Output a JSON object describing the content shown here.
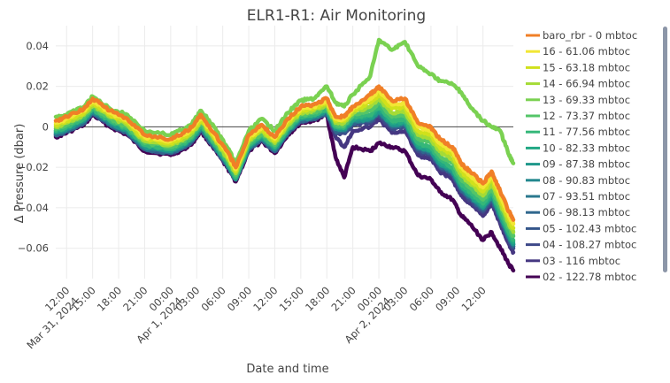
{
  "chart_data": {
    "type": "line",
    "title": "ELR1-R1: Air Monitoring",
    "xlabel": "Date and time",
    "ylabel": "Δ Pressure (dbar)",
    "ylim": [
      -0.075,
      0.05
    ],
    "xlim": [
      "2024-03-31T10:45",
      "2024-04-02T15:30"
    ],
    "y_ticks": [
      -0.06,
      -0.04,
      -0.02,
      0,
      0.02,
      0.04
    ],
    "y_tick_labels": [
      "−0.06",
      "−0.04",
      "−0.02",
      "0",
      "0.02",
      "0.04"
    ],
    "x_ticks": [
      {
        "t": "2024-03-31T12:00",
        "label": "12:00",
        "sub": "Mar 31, 2024"
      },
      {
        "t": "2024-03-31T15:00",
        "label": "15:00"
      },
      {
        "t": "2024-03-31T18:00",
        "label": "18:00"
      },
      {
        "t": "2024-03-31T21:00",
        "label": "21:00"
      },
      {
        "t": "2024-04-01T00:00",
        "label": "00:00",
        "sub": "Apr 1, 2024"
      },
      {
        "t": "2024-04-01T03:00",
        "label": "03:00"
      },
      {
        "t": "2024-04-01T06:00",
        "label": "06:00"
      },
      {
        "t": "2024-04-01T09:00",
        "label": "09:00"
      },
      {
        "t": "2024-04-01T12:00",
        "label": "12:00"
      },
      {
        "t": "2024-04-01T15:00",
        "label": "15:00"
      },
      {
        "t": "2024-04-01T18:00",
        "label": "18:00"
      },
      {
        "t": "2024-04-01T21:00",
        "label": "21:00"
      },
      {
        "t": "2024-04-02T00:00",
        "label": "00:00",
        "sub": "Apr 2, 2024"
      },
      {
        "t": "2024-04-02T03:00",
        "label": "03:00"
      },
      {
        "t": "2024-04-02T06:00",
        "label": "06:00"
      },
      {
        "t": "2024-04-02T09:00",
        "label": "09:00"
      },
      {
        "t": "2024-04-02T12:00",
        "label": "12:00"
      }
    ],
    "grid": true,
    "legend_position": "right",
    "x": [
      "2024-03-31T10:45",
      "2024-03-31T12:00",
      "2024-03-31T14:00",
      "2024-03-31T15:00",
      "2024-03-31T17:00",
      "2024-03-31T19:00",
      "2024-03-31T21:00",
      "2024-04-01T00:00",
      "2024-04-01T01:30",
      "2024-04-01T02:30",
      "2024-04-01T03:30",
      "2024-04-01T05:00",
      "2024-04-01T06:30",
      "2024-04-01T07:30",
      "2024-04-01T09:00",
      "2024-04-01T10:30",
      "2024-04-01T12:00",
      "2024-04-01T13:30",
      "2024-04-01T15:00",
      "2024-04-01T16:30",
      "2024-04-01T18:00",
      "2024-04-01T19:00",
      "2024-04-01T20:00",
      "2024-04-01T21:00",
      "2024-04-01T23:00",
      "2024-04-02T00:00",
      "2024-04-02T01:30",
      "2024-04-02T03:00",
      "2024-04-02T04:30",
      "2024-04-02T06:00",
      "2024-04-02T07:00",
      "2024-04-02T08:30",
      "2024-04-02T09:30",
      "2024-04-02T10:30",
      "2024-04-02T12:00",
      "2024-04-02T13:00",
      "2024-04-02T14:00",
      "2024-04-02T15:00",
      "2024-04-02T15:30"
    ],
    "series": [
      {
        "name": "baro_rbr - 0 mbtoc",
        "color": "#f07f27",
        "values": [
          0.003,
          0.005,
          0.009,
          0.014,
          0.008,
          0.004,
          -0.004,
          -0.006,
          -0.003,
          0.0,
          0.006,
          -0.003,
          -0.012,
          -0.02,
          -0.004,
          0.001,
          -0.005,
          0.004,
          0.01,
          0.011,
          0.014,
          0.005,
          0.005,
          0.01,
          0.016,
          0.02,
          0.013,
          0.014,
          0.002,
          0.0,
          -0.006,
          -0.01,
          -0.018,
          -0.022,
          -0.028,
          -0.022,
          -0.032,
          -0.042,
          -0.046
        ]
      },
      {
        "name": "16 - 61.06 mbtoc",
        "color": "#f2e635",
        "values": [
          0.002,
          0.004,
          0.008,
          0.013,
          0.007,
          0.003,
          -0.005,
          -0.007,
          -0.004,
          -0.001,
          0.005,
          -0.004,
          -0.013,
          -0.021,
          -0.005,
          0.0,
          -0.006,
          0.003,
          0.009,
          0.01,
          0.013,
          0.004,
          0.004,
          0.009,
          0.014,
          0.018,
          0.011,
          0.012,
          0.0,
          -0.002,
          -0.008,
          -0.012,
          -0.02,
          -0.024,
          -0.03,
          -0.024,
          -0.034,
          -0.044,
          -0.048
        ]
      },
      {
        "name": "15 - 63.18 mbtoc",
        "color": "#d0e11c",
        "values": [
          0.001,
          0.003,
          0.007,
          0.012,
          0.006,
          0.002,
          -0.006,
          -0.008,
          -0.005,
          -0.002,
          0.004,
          -0.005,
          -0.014,
          -0.022,
          -0.006,
          -0.001,
          -0.007,
          0.002,
          0.008,
          0.009,
          0.012,
          0.003,
          0.003,
          0.008,
          0.012,
          0.016,
          0.009,
          0.01,
          -0.002,
          -0.004,
          -0.01,
          -0.014,
          -0.022,
          -0.026,
          -0.032,
          -0.026,
          -0.036,
          -0.046,
          -0.05
        ]
      },
      {
        "name": "14 - 66.94 mbtoc",
        "color": "#a5db36",
        "values": [
          0.0,
          0.002,
          0.006,
          0.011,
          0.005,
          0.001,
          -0.007,
          -0.009,
          -0.006,
          -0.003,
          0.003,
          -0.006,
          -0.015,
          -0.023,
          -0.007,
          -0.002,
          -0.008,
          0.001,
          0.007,
          0.008,
          0.011,
          0.002,
          0.002,
          0.007,
          0.01,
          0.014,
          0.007,
          0.008,
          -0.004,
          -0.006,
          -0.012,
          -0.016,
          -0.024,
          -0.028,
          -0.034,
          -0.028,
          -0.038,
          -0.048,
          -0.052
        ]
      },
      {
        "name": "13 - 69.33 mbtoc",
        "color": "#7ad151",
        "values": [
          0.005,
          0.006,
          0.01,
          0.015,
          0.009,
          0.006,
          -0.002,
          -0.004,
          -0.001,
          0.002,
          0.008,
          0.0,
          -0.01,
          -0.018,
          -0.002,
          0.004,
          -0.002,
          0.007,
          0.013,
          0.014,
          0.02,
          0.012,
          0.01,
          0.016,
          0.025,
          0.043,
          0.038,
          0.042,
          0.03,
          0.026,
          0.023,
          0.021,
          0.017,
          0.01,
          0.003,
          0.0,
          -0.002,
          -0.014,
          -0.018
        ]
      },
      {
        "name": "12 - 73.37 mbtoc",
        "color": "#54c568",
        "values": [
          -0.001,
          0.001,
          0.005,
          0.01,
          0.004,
          0.0,
          -0.008,
          -0.01,
          -0.007,
          -0.004,
          0.002,
          -0.007,
          -0.016,
          -0.024,
          -0.008,
          -0.003,
          -0.009,
          0.0,
          0.006,
          0.007,
          0.01,
          0.001,
          0.001,
          0.006,
          0.008,
          0.012,
          0.005,
          0.006,
          -0.006,
          -0.008,
          -0.014,
          -0.018,
          -0.026,
          -0.03,
          -0.036,
          -0.03,
          -0.04,
          -0.05,
          -0.054
        ]
      },
      {
        "name": "11 - 77.56 mbtoc",
        "color": "#35b779",
        "values": [
          -0.002,
          0.0,
          0.004,
          0.009,
          0.003,
          -0.001,
          -0.009,
          -0.011,
          -0.008,
          -0.005,
          0.001,
          -0.008,
          -0.017,
          -0.025,
          -0.009,
          -0.004,
          -0.01,
          -0.001,
          0.005,
          0.006,
          0.009,
          0.0,
          0.0,
          0.005,
          0.006,
          0.01,
          0.003,
          0.004,
          -0.008,
          -0.01,
          -0.016,
          -0.02,
          -0.028,
          -0.032,
          -0.038,
          -0.032,
          -0.042,
          -0.052,
          -0.056
        ]
      },
      {
        "name": "10 - 82.33 mbtoc",
        "color": "#22a884",
        "values": [
          -0.002,
          0.0,
          0.004,
          0.009,
          0.003,
          -0.001,
          -0.009,
          -0.011,
          -0.008,
          -0.005,
          0.001,
          -0.008,
          -0.017,
          -0.025,
          -0.009,
          -0.004,
          -0.01,
          -0.001,
          0.005,
          0.006,
          0.009,
          0.0,
          0.0,
          0.004,
          0.005,
          0.009,
          0.002,
          0.003,
          -0.009,
          -0.011,
          -0.017,
          -0.021,
          -0.029,
          -0.033,
          -0.039,
          -0.033,
          -0.043,
          -0.053,
          -0.057
        ]
      },
      {
        "name": "09 - 87.38 mbtoc",
        "color": "#1f988b",
        "values": [
          -0.003,
          -0.001,
          0.003,
          0.008,
          0.002,
          -0.002,
          -0.01,
          -0.012,
          -0.009,
          -0.006,
          0.0,
          -0.009,
          -0.018,
          -0.026,
          -0.01,
          -0.005,
          -0.011,
          -0.002,
          0.004,
          0.005,
          0.008,
          -0.001,
          -0.001,
          0.003,
          0.004,
          0.008,
          0.001,
          0.002,
          -0.01,
          -0.012,
          -0.018,
          -0.022,
          -0.03,
          -0.034,
          -0.04,
          -0.034,
          -0.044,
          -0.054,
          -0.058
        ]
      },
      {
        "name": "08 - 90.83 mbtoc",
        "color": "#23888e",
        "values": [
          -0.003,
          -0.001,
          0.003,
          0.008,
          0.002,
          -0.002,
          -0.01,
          -0.012,
          -0.009,
          -0.006,
          0.0,
          -0.009,
          -0.018,
          -0.026,
          -0.01,
          -0.005,
          -0.011,
          -0.002,
          0.004,
          0.005,
          0.008,
          -0.001,
          -0.001,
          0.003,
          0.004,
          0.008,
          0.001,
          0.002,
          -0.01,
          -0.012,
          -0.018,
          -0.022,
          -0.03,
          -0.034,
          -0.04,
          -0.034,
          -0.044,
          -0.054,
          -0.058
        ]
      },
      {
        "name": "07 - 93.51 mbtoc",
        "color": "#2a788e",
        "values": [
          -0.003,
          -0.001,
          0.003,
          0.008,
          0.002,
          -0.002,
          -0.01,
          -0.012,
          -0.009,
          -0.006,
          0.0,
          -0.009,
          -0.018,
          -0.026,
          -0.01,
          -0.005,
          -0.011,
          -0.002,
          0.004,
          0.005,
          0.008,
          -0.001,
          -0.001,
          0.003,
          0.004,
          0.008,
          0.001,
          0.002,
          -0.01,
          -0.012,
          -0.018,
          -0.022,
          -0.03,
          -0.034,
          -0.04,
          -0.034,
          -0.044,
          -0.054,
          -0.058
        ]
      },
      {
        "name": "06 - 98.13 mbtoc",
        "color": "#30678d",
        "values": [
          -0.004,
          -0.002,
          0.002,
          0.007,
          0.001,
          -0.003,
          -0.011,
          -0.013,
          -0.01,
          -0.007,
          -0.001,
          -0.01,
          -0.019,
          -0.026,
          -0.011,
          -0.006,
          -0.012,
          -0.003,
          0.003,
          0.004,
          0.007,
          -0.002,
          -0.002,
          0.002,
          0.003,
          0.007,
          0.0,
          0.001,
          -0.011,
          -0.013,
          -0.019,
          -0.023,
          -0.031,
          -0.035,
          -0.041,
          -0.035,
          -0.045,
          -0.055,
          -0.059
        ]
      },
      {
        "name": "05 - 102.43 mbtoc",
        "color": "#35568b",
        "values": [
          -0.004,
          -0.002,
          0.002,
          0.007,
          0.001,
          -0.003,
          -0.011,
          -0.013,
          -0.01,
          -0.007,
          -0.001,
          -0.01,
          -0.019,
          -0.026,
          -0.011,
          -0.006,
          -0.012,
          -0.003,
          0.003,
          0.004,
          0.007,
          -0.002,
          -0.002,
          0.002,
          0.003,
          0.007,
          0.0,
          0.001,
          -0.011,
          -0.013,
          -0.019,
          -0.023,
          -0.031,
          -0.035,
          -0.041,
          -0.035,
          -0.045,
          -0.055,
          -0.059
        ]
      },
      {
        "name": "04 - 108.27 mbtoc",
        "color": "#3e4989",
        "values": [
          -0.004,
          -0.002,
          0.002,
          0.007,
          0.001,
          -0.003,
          -0.011,
          -0.013,
          -0.01,
          -0.007,
          -0.001,
          -0.01,
          -0.019,
          -0.026,
          -0.011,
          -0.006,
          -0.012,
          -0.003,
          0.003,
          0.004,
          0.007,
          -0.003,
          -0.003,
          0.001,
          0.002,
          0.006,
          -0.001,
          0.0,
          -0.012,
          -0.014,
          -0.02,
          -0.024,
          -0.032,
          -0.036,
          -0.042,
          -0.036,
          -0.046,
          -0.056,
          -0.06
        ]
      },
      {
        "name": "03 - 116 mbtoc",
        "color": "#453781",
        "values": [
          -0.004,
          -0.002,
          0.002,
          0.007,
          0.001,
          -0.003,
          -0.011,
          -0.013,
          -0.01,
          -0.007,
          -0.001,
          -0.01,
          -0.019,
          -0.026,
          -0.011,
          -0.006,
          -0.012,
          -0.003,
          0.003,
          0.004,
          0.007,
          -0.005,
          -0.01,
          -0.002,
          0.0,
          0.004,
          -0.003,
          -0.002,
          -0.014,
          -0.016,
          -0.022,
          -0.026,
          -0.034,
          -0.038,
          -0.044,
          -0.038,
          -0.048,
          -0.058,
          -0.062
        ]
      },
      {
        "name": "02 - 122.78 mbtoc",
        "color": "#440154",
        "values": [
          -0.005,
          -0.003,
          0.001,
          0.006,
          0.0,
          -0.004,
          -0.012,
          -0.014,
          -0.011,
          -0.008,
          -0.002,
          -0.011,
          -0.02,
          -0.027,
          -0.012,
          -0.007,
          -0.013,
          -0.004,
          0.002,
          0.003,
          0.006,
          -0.015,
          -0.025,
          -0.01,
          -0.012,
          -0.008,
          -0.01,
          -0.012,
          -0.024,
          -0.026,
          -0.032,
          -0.036,
          -0.044,
          -0.048,
          -0.056,
          -0.052,
          -0.06,
          -0.068,
          -0.071
        ]
      }
    ]
  }
}
